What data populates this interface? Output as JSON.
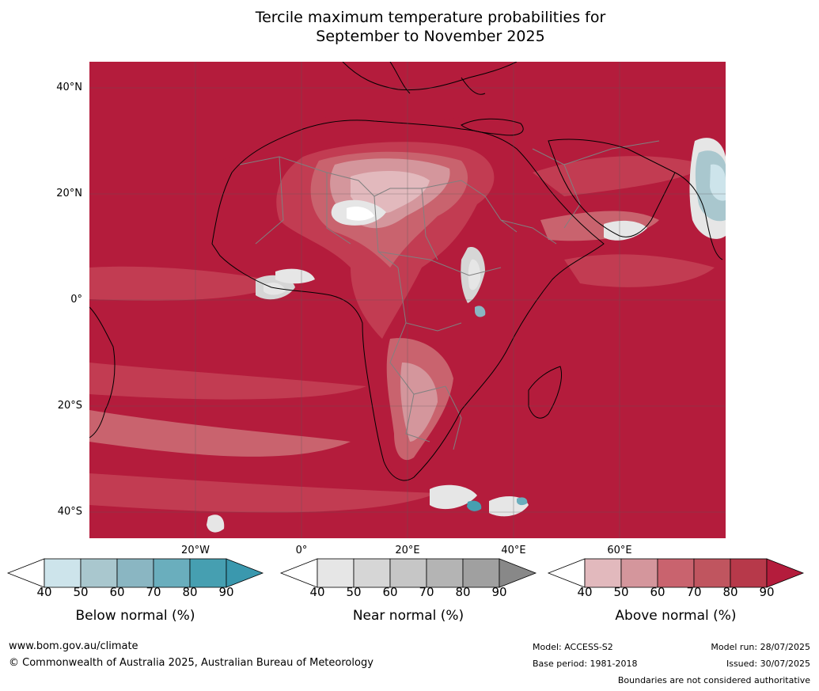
{
  "title": {
    "line1": "Tercile maximum temperature probabilities for",
    "line2": "September to November 2025"
  },
  "map": {
    "latitude_labels": [
      "40°N",
      "20°N",
      "0°",
      "20°S",
      "40°S"
    ],
    "longitude_labels": [
      "20°W",
      "0°",
      "20°E",
      "40°E",
      "60°E"
    ],
    "extent": {
      "lon_min": -40,
      "lon_max": 80,
      "lat_min": -45,
      "lat_max": 45
    },
    "colors": {
      "background_above_90": "#b41c3c",
      "above_80": "#c23c52",
      "above_70": "#c9636e",
      "above_60": "#d4969c",
      "above_50": "#e2b9bd",
      "near_50": "#d6d6d6",
      "near_40": "#e6e6e6",
      "below_70": "#8ab6c2",
      "below_80": "#6aaebd",
      "coastline": "#000000",
      "borders": "#808080",
      "grid": "#5a5a5a"
    }
  },
  "legends": [
    {
      "title": "Below normal (%)",
      "ticks": [
        "40",
        "50",
        "60",
        "70",
        "80",
        "90"
      ],
      "colors": [
        "#ffffff",
        "#cde4eb",
        "#a9c7ce",
        "#8ab6c2",
        "#6aaebd",
        "#469fb1",
        "#3a98ae"
      ]
    },
    {
      "title": "Near normal (%)",
      "ticks": [
        "40",
        "50",
        "60",
        "70",
        "80",
        "90"
      ],
      "colors": [
        "#ffffff",
        "#e6e6e6",
        "#d6d6d6",
        "#c6c6c6",
        "#b4b4b4",
        "#a0a0a0",
        "#888888"
      ]
    },
    {
      "title": "Above normal (%)",
      "ticks": [
        "40",
        "50",
        "60",
        "70",
        "80",
        "90"
      ],
      "colors": [
        "#ffffff",
        "#e2b9bd",
        "#d4969c",
        "#c9636e",
        "#c0555f",
        "#b7394a",
        "#b41c3c"
      ]
    }
  ],
  "footer": {
    "website": "www.bom.gov.au/climate",
    "copyright": "© Commonwealth of Australia 2025, Australian Bureau of Meteorology",
    "model": "Model: ACCESS-S2",
    "base_period": "Base period: 1981-2018",
    "model_run": "Model run: 28/07/2025",
    "issued": "Issued: 30/07/2025",
    "disclaimer": "Boundaries are not considered authoritative"
  }
}
